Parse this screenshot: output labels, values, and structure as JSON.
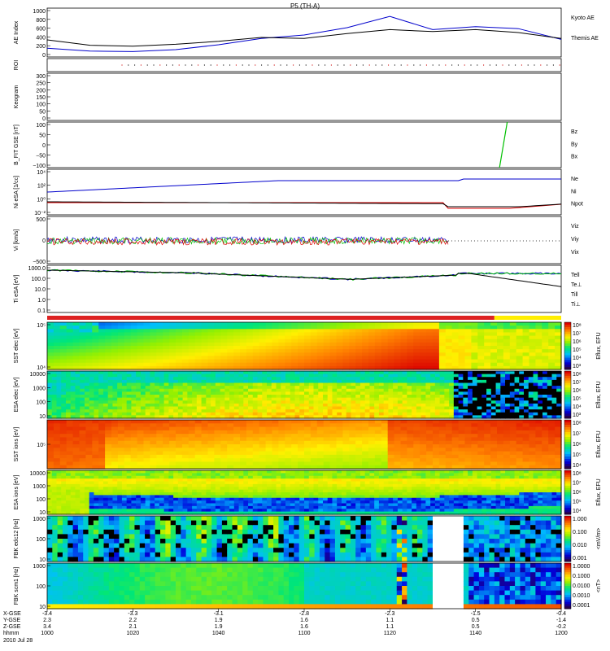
{
  "title": "P5 (TH-A)",
  "date_label": "2010 Jul 28",
  "colors": {
    "blue": "#0000cc",
    "red": "#dd0000",
    "green": "#00c000",
    "black": "#000000"
  },
  "panels": [
    {
      "id": "ae",
      "ylabel": "AE Index",
      "yticks": [
        "1000",
        "800",
        "600",
        "400",
        "200",
        "0"
      ],
      "legend": [
        {
          "text": "Kyoto AE",
          "color": "#0000cc"
        },
        {
          "text": "Themis AE",
          "color": "#000000"
        }
      ]
    },
    {
      "id": "roi",
      "ylabel": "ROI",
      "yticks": [],
      "legend": []
    },
    {
      "id": "keogram",
      "ylabel": "Keogram",
      "yticks": [
        "300",
        "250",
        "200",
        "150",
        "100",
        "50",
        "0"
      ],
      "legend": []
    },
    {
      "id": "bfit",
      "ylabel": "B_FIT GSE [nT]",
      "yticks": [
        "100",
        "50",
        "0",
        "−50",
        "−100"
      ],
      "legend": [
        {
          "text": "Bz",
          "color": "#dd0000"
        },
        {
          "text": "By",
          "color": "#00c000"
        },
        {
          "text": "Bx",
          "color": "#0000cc"
        }
      ]
    },
    {
      "id": "ni",
      "ylabel": "Ni eSA [1/cc]",
      "yticks": [
        "10⁴",
        "10²",
        "10⁰",
        "10⁻²"
      ],
      "legend": [
        {
          "text": "Ne",
          "color": "#dd0000"
        },
        {
          "text": "Ni",
          "color": "#000000"
        },
        {
          "text": "Npot",
          "color": "#0000cc"
        }
      ]
    },
    {
      "id": "vi",
      "ylabel": "Vi [km/s]",
      "yticks": [
        "500",
        "0",
        "−500"
      ],
      "legend": [
        {
          "text": "Viz",
          "color": "#dd0000"
        },
        {
          "text": "Viy",
          "color": "#00c000"
        },
        {
          "text": "Vix",
          "color": "#0000cc"
        }
      ]
    },
    {
      "id": "ti",
      "ylabel": "Ti eSA [eV]",
      "yticks": [
        "1000.0",
        "100.0",
        "10.0",
        "1.0",
        "0.1"
      ],
      "legend": [
        {
          "text": "Tell",
          "color": "#000000"
        },
        {
          "text": "Te⊥",
          "color": "#dd0000"
        },
        {
          "text": "Ti‖",
          "color": "#00c000"
        },
        {
          "text": "Ti⊥",
          "color": "#0000cc"
        }
      ]
    },
    {
      "id": "sst_e",
      "ylabel": "SST elec [eV]",
      "yticks": [
        "10⁵",
        "10⁴"
      ],
      "cbar_label": "Eflux, EFU",
      "cbar_ticks": [
        "10⁸",
        "10⁷",
        "10⁶",
        "10⁵",
        "10⁴",
        "10³"
      ]
    },
    {
      "id": "esa_e",
      "ylabel": "ESA elec [eV]",
      "yticks": [
        "10000",
        "1000",
        "100",
        "10"
      ],
      "cbar_label": "Eflux, EFU",
      "cbar_ticks": [
        "10⁸",
        "10⁷",
        "10⁶",
        "10⁵",
        "10⁴",
        "10³"
      ]
    },
    {
      "id": "sst_i",
      "ylabel": "SST ions [eV]",
      "yticks": [
        "10⁵"
      ],
      "cbar_label": "Eflux, EFU",
      "cbar_ticks": [
        "10⁸",
        "10⁷",
        "10⁶",
        "10⁵",
        "10⁴"
      ]
    },
    {
      "id": "esa_i",
      "ylabel": "ESA ions [eV]",
      "yticks": [
        "10000",
        "1000",
        "100",
        "10"
      ],
      "cbar_label": "Eflux, EFU",
      "cbar_ticks": [
        "10⁸",
        "10⁷",
        "10⁶",
        "10⁵",
        "10⁴"
      ]
    },
    {
      "id": "fbk_e",
      "ylabel": "FBK edc12 [Hz]",
      "yticks": [
        "1000",
        "100",
        "10"
      ],
      "cbar_label": "<mV/m>",
      "cbar_ticks": [
        "1.000",
        "0.100",
        "0.010",
        "0.001"
      ]
    },
    {
      "id": "fbk_b",
      "ylabel": "FBK scm1 [Hz]",
      "yticks": [
        "1000",
        "100",
        "10"
      ],
      "cbar_label": "<nT>",
      "cbar_ticks": [
        "1.0000",
        "0.1000",
        "0.0100",
        "0.0010",
        "0.0001"
      ]
    }
  ],
  "xaxis": {
    "row_labels": [
      "X-GSE",
      "Y-GSE",
      "Z-GSE",
      "hhmm"
    ],
    "ticks": [
      {
        "x": "-3.4",
        "y": "2.3",
        "z": "3.4",
        "t": "1000"
      },
      {
        "x": "-3.3",
        "y": "2.2",
        "z": "2.1",
        "t": "1020"
      },
      {
        "x": "-3.1",
        "y": "1.9",
        "z": "1.9",
        "t": "1040"
      },
      {
        "x": "-2.8",
        "y": "1.6",
        "z": "1.6",
        "t": "1100"
      },
      {
        "x": "-2.3",
        "y": "1.1",
        "z": "1.1",
        "t": "1120"
      },
      {
        "x": "-1.5",
        "y": "0.5",
        "z": "0.5",
        "t": "1140"
      },
      {
        "x": "-0.4",
        "y": "-1.4",
        "z": "-0.2",
        "t": "1200"
      }
    ]
  },
  "chart_data": {
    "type": "line",
    "title": "P5 (TH-A)",
    "x": [
      "1000",
      "1010",
      "1020",
      "1030",
      "1040",
      "1050",
      "1100",
      "1110",
      "1120",
      "1130",
      "1140",
      "1150",
      "1200"
    ],
    "series": [
      {
        "name": "Kyoto AE",
        "values": [
          180,
          120,
          110,
          150,
          250,
          380,
          450,
          600,
          830,
          560,
          620,
          580,
          360
        ]
      },
      {
        "name": "Themis AE",
        "values": [
          350,
          240,
          220,
          260,
          320,
          400,
          380,
          480,
          560,
          520,
          560,
          500,
          380
        ]
      }
    ],
    "ylabel": "AE Index",
    "ylim": [
      0,
      1000
    ]
  }
}
